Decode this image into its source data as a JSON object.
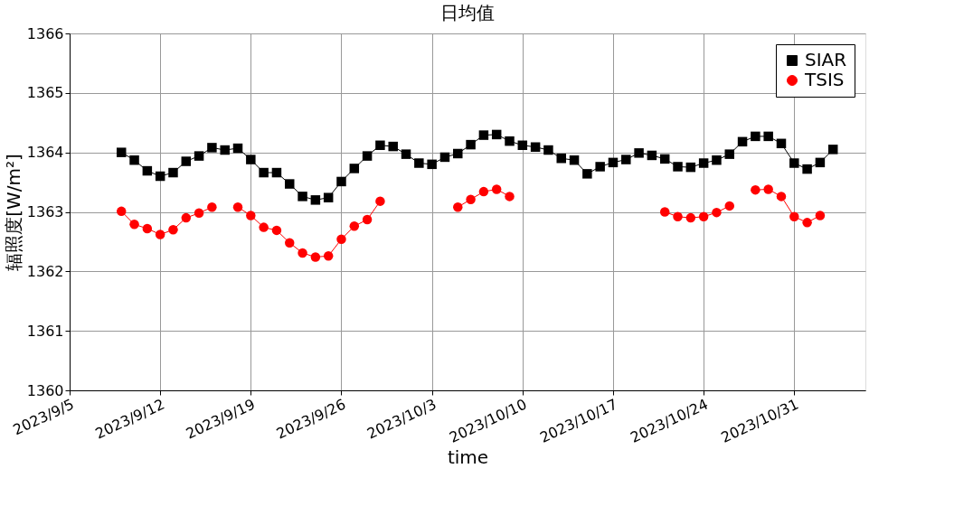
{
  "chart_data": {
    "type": "line",
    "title": "日均值",
    "xlabel": "time",
    "ylabel": "辐照度[W/m²]",
    "x": [
      "2023-09-09",
      "2023-09-10",
      "2023-09-11",
      "2023-09-12",
      "2023-09-13",
      "2023-09-14",
      "2023-09-15",
      "2023-09-16",
      "2023-09-17",
      "2023-09-18",
      "2023-09-19",
      "2023-09-20",
      "2023-09-21",
      "2023-09-22",
      "2023-09-23",
      "2023-09-24",
      "2023-09-25",
      "2023-09-26",
      "2023-09-27",
      "2023-09-28",
      "2023-09-29",
      "2023-09-30",
      "2023-10-01",
      "2023-10-02",
      "2023-10-03",
      "2023-10-04",
      "2023-10-05",
      "2023-10-06",
      "2023-10-07",
      "2023-10-08",
      "2023-10-09",
      "2023-10-10",
      "2023-10-11",
      "2023-10-12",
      "2023-10-13",
      "2023-10-14",
      "2023-10-15",
      "2023-10-16",
      "2023-10-17",
      "2023-10-18",
      "2023-10-19",
      "2023-10-20",
      "2023-10-21",
      "2023-10-22",
      "2023-10-23",
      "2023-10-24",
      "2023-10-25",
      "2023-10-26",
      "2023-10-27",
      "2023-10-28",
      "2023-10-29",
      "2023-10-30",
      "2023-10-31",
      "2023-11-01",
      "2023-11-02",
      "2023-11-03"
    ],
    "series": [
      {
        "name": "SIAR",
        "color": "#000000",
        "marker": "square",
        "values": [
          1364.0,
          1363.87,
          1363.69,
          1363.6,
          1363.66,
          1363.85,
          1363.94,
          1364.08,
          1364.04,
          1364.07,
          1363.88,
          1363.66,
          1363.66,
          1363.47,
          1363.26,
          1363.2,
          1363.24,
          1363.51,
          1363.73,
          1363.94,
          1364.12,
          1364.1,
          1363.97,
          1363.82,
          1363.8,
          1363.92,
          1363.98,
          1364.13,
          1364.29,
          1364.3,
          1364.19,
          1364.12,
          1364.09,
          1364.04,
          1363.9,
          1363.87,
          1363.64,
          1363.76,
          1363.83,
          1363.88,
          1363.99,
          1363.95,
          1363.89,
          1363.76,
          1363.75,
          1363.82,
          1363.87,
          1363.97,
          1364.18,
          1364.27,
          1364.27,
          1364.15,
          1363.82,
          1363.72,
          1363.83,
          1364.05
        ]
      },
      {
        "name": "TSIS",
        "color": "#ff0000",
        "marker": "circle",
        "values": [
          1363.01,
          1362.79,
          1362.72,
          1362.62,
          1362.7,
          1362.9,
          1362.98,
          1363.08,
          null,
          1363.08,
          1362.94,
          1362.74,
          1362.69,
          1362.48,
          1362.31,
          1362.24,
          1362.26,
          1362.54,
          1362.76,
          1362.87,
          1363.18,
          null,
          null,
          null,
          null,
          null,
          1363.08,
          1363.21,
          1363.34,
          1363.38,
          1363.26,
          null,
          null,
          null,
          null,
          null,
          null,
          null,
          null,
          null,
          null,
          null,
          1363.0,
          1362.92,
          1362.9,
          1362.92,
          1362.99,
          1363.1,
          null,
          1363.37,
          1363.38,
          1363.26,
          1362.92,
          1362.82,
          1362.94,
          null
        ]
      }
    ],
    "xlim": [
      "2023-09-05",
      "2023-11-05T12:00"
    ],
    "xticks": [
      {
        "value": "2023-09-05",
        "label": "2023/9/5"
      },
      {
        "value": "2023-09-12",
        "label": "2023/9/12"
      },
      {
        "value": "2023-09-19",
        "label": "2023/9/19"
      },
      {
        "value": "2023-09-26",
        "label": "2023/9/26"
      },
      {
        "value": "2023-10-03",
        "label": "2023/10/3"
      },
      {
        "value": "2023-10-10",
        "label": "2023/10/10"
      },
      {
        "value": "2023-10-17",
        "label": "2023/10/17"
      },
      {
        "value": "2023-10-24",
        "label": "2023/10/24"
      },
      {
        "value": "2023-10-31",
        "label": "2023/10/31"
      }
    ],
    "ylim": [
      1360,
      1366
    ],
    "yticks": [
      1360,
      1361,
      1362,
      1363,
      1364,
      1365,
      1366
    ],
    "grid": true,
    "legend": "top right",
    "line_style": "solid"
  }
}
